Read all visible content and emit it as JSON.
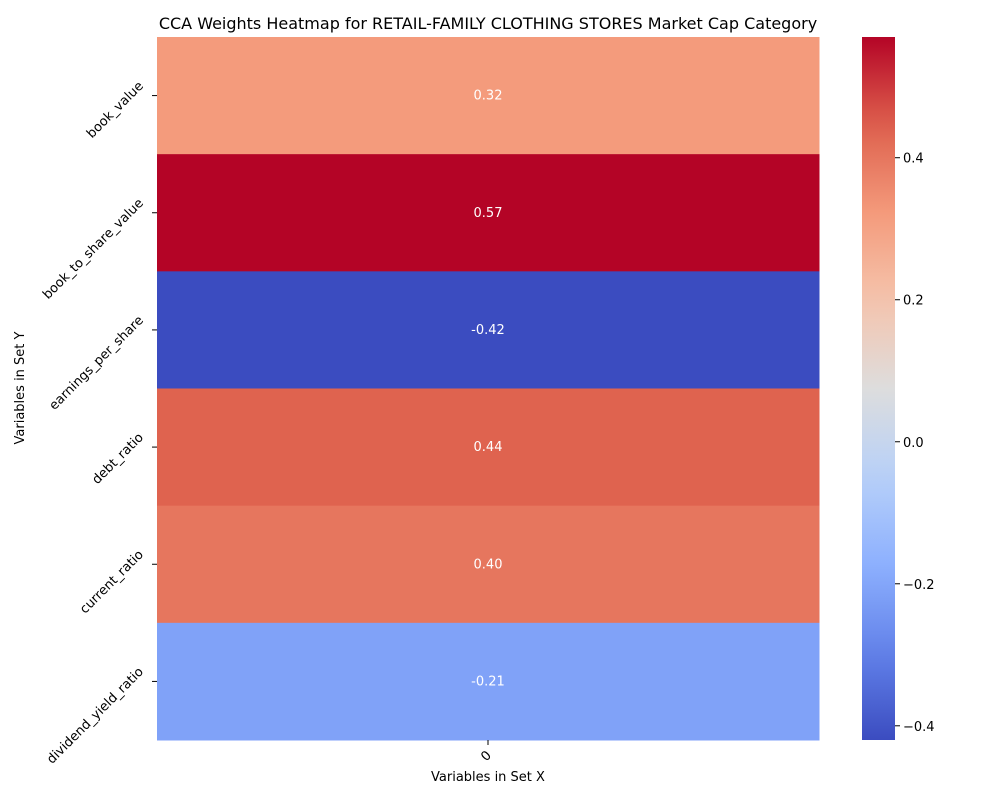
{
  "chart_data": {
    "type": "heatmap",
    "title": "CCA Weights Heatmap for RETAIL-FAMILY CLOTHING STORES Market Cap Category",
    "xlabel": "Variables in Set X",
    "ylabel": "Variables in Set Y",
    "x_categories": [
      "0"
    ],
    "y_categories": [
      "book_value",
      "book_to_share_value",
      "earnings_per_share",
      "debt_ratio",
      "current_ratio",
      "dividend_yield_ratio"
    ],
    "values": [
      [
        0.32
      ],
      [
        0.57
      ],
      [
        -0.42
      ],
      [
        0.44
      ],
      [
        0.4
      ],
      [
        -0.21
      ]
    ],
    "value_labels": [
      [
        "0.32"
      ],
      [
        "0.57"
      ],
      [
        "-0.42"
      ],
      [
        "0.44"
      ],
      [
        "0.40"
      ],
      [
        "-0.21"
      ]
    ],
    "colormap": "coolwarm",
    "vmin": -0.42,
    "vmax": 0.57,
    "colorbar_ticks": [
      -0.4,
      -0.2,
      0.0,
      0.2,
      0.4
    ],
    "colorbar_tick_labels": [
      "−0.4",
      "−0.2",
      "0.0",
      "0.2",
      "0.4"
    ],
    "grid": false,
    "legend": "colorbar-right"
  }
}
